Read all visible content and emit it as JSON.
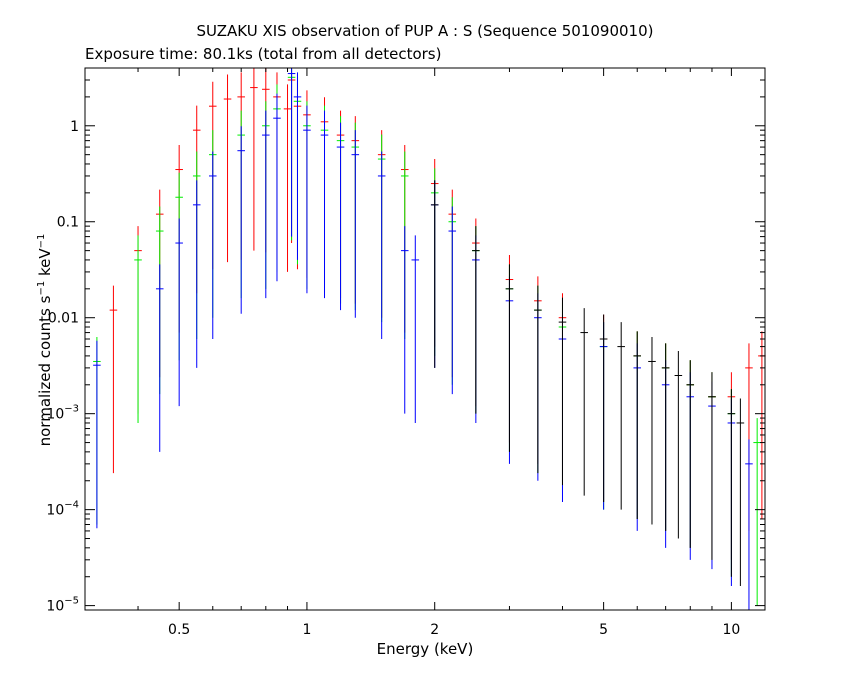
{
  "chart_data": {
    "type": "scatter",
    "title": "SUZAKU XIS observation of PUP A : S (Sequence 501090010)",
    "subtitle": "Exposure time: 80.1ks (total from all detectors)",
    "xlabel": "Energy (keV)",
    "ylabel_main": "normalized counts s",
    "ylabel_sup1": "−1",
    "ylabel_mid": " keV",
    "ylabel_sup2": "−1",
    "x_scale": "log",
    "y_scale": "log",
    "xlim": [
      0.3,
      12.0
    ],
    "ylim": [
      9e-06,
      4.0
    ],
    "x_ticks": [
      {
        "value": 0.5,
        "label": "0.5"
      },
      {
        "value": 1,
        "label": "1"
      },
      {
        "value": 2,
        "label": "2"
      },
      {
        "value": 5,
        "label": "5"
      },
      {
        "value": 10,
        "label": "10"
      }
    ],
    "y_ticks": [
      {
        "value": 1e-05,
        "mant": "10",
        "exp": "−5"
      },
      {
        "value": 0.0001,
        "mant": "10",
        "exp": "−4"
      },
      {
        "value": 0.001,
        "mant": "10",
        "exp": "−3"
      },
      {
        "value": 0.01,
        "mant": "0.01",
        "exp": ""
      },
      {
        "value": 0.1,
        "mant": "0.1",
        "exp": ""
      },
      {
        "value": 1,
        "mant": "1",
        "exp": ""
      }
    ],
    "series": [
      {
        "color": "#ff0000",
        "points": [
          [
            0.35,
            0.012
          ],
          [
            0.4,
            0.05
          ],
          [
            0.45,
            0.12
          ],
          [
            0.5,
            0.35
          ],
          [
            0.55,
            0.9
          ],
          [
            0.6,
            1.6
          ],
          [
            0.65,
            1.9
          ],
          [
            0.7,
            2.0
          ],
          [
            0.75,
            2.5
          ],
          [
            0.8,
            2.4
          ],
          [
            0.85,
            2.0
          ],
          [
            0.9,
            1.5
          ],
          [
            0.92,
            3.0
          ],
          [
            0.95,
            1.6
          ],
          [
            1.0,
            1.3
          ],
          [
            1.1,
            1.1
          ],
          [
            1.2,
            0.8
          ],
          [
            1.3,
            0.7
          ],
          [
            1.5,
            0.5
          ],
          [
            1.7,
            0.35
          ],
          [
            2.0,
            0.25
          ],
          [
            2.2,
            0.12
          ],
          [
            2.5,
            0.06
          ],
          [
            3.0,
            0.025
          ],
          [
            3.5,
            0.015
          ],
          [
            4.0,
            0.01
          ],
          [
            5.0,
            0.006
          ],
          [
            6.0,
            0.004
          ],
          [
            7.0,
            0.003
          ],
          [
            8.0,
            0.002
          ],
          [
            9.0,
            0.0015
          ],
          [
            10.0,
            0.0015
          ],
          [
            11.0,
            0.003
          ],
          [
            11.8,
            0.004
          ]
        ]
      },
      {
        "color": "#00ee00",
        "points": [
          [
            0.32,
            0.0035
          ],
          [
            0.4,
            0.04
          ],
          [
            0.45,
            0.08
          ],
          [
            0.5,
            0.18
          ],
          [
            0.55,
            0.3
          ],
          [
            0.6,
            0.5
          ],
          [
            0.7,
            0.8
          ],
          [
            0.8,
            1.0
          ],
          [
            0.85,
            1.5
          ],
          [
            0.92,
            3.2
          ],
          [
            0.95,
            1.8
          ],
          [
            1.0,
            1.0
          ],
          [
            1.1,
            0.9
          ],
          [
            1.2,
            0.7
          ],
          [
            1.3,
            0.6
          ],
          [
            1.5,
            0.45
          ],
          [
            1.7,
            0.3
          ],
          [
            2.0,
            0.2
          ],
          [
            2.2,
            0.1
          ],
          [
            2.5,
            0.05
          ],
          [
            3.0,
            0.02
          ],
          [
            3.5,
            0.012
          ],
          [
            4.0,
            0.008
          ],
          [
            5.0,
            0.005
          ],
          [
            6.0,
            0.004
          ],
          [
            7.0,
            0.003
          ],
          [
            8.0,
            0.002
          ],
          [
            9.0,
            0.0015
          ],
          [
            10.0,
            0.001
          ],
          [
            11.5,
            0.0005
          ]
        ]
      },
      {
        "color": "#0000ff",
        "points": [
          [
            0.32,
            0.0032
          ],
          [
            0.45,
            0.02
          ],
          [
            0.5,
            0.06
          ],
          [
            0.55,
            0.15
          ],
          [
            0.6,
            0.3
          ],
          [
            0.7,
            0.55
          ],
          [
            0.8,
            0.8
          ],
          [
            0.85,
            1.2
          ],
          [
            0.92,
            3.5
          ],
          [
            0.95,
            2.0
          ],
          [
            1.0,
            0.9
          ],
          [
            1.1,
            0.8
          ],
          [
            1.2,
            0.6
          ],
          [
            1.3,
            0.5
          ],
          [
            1.5,
            0.3
          ],
          [
            1.7,
            0.05
          ],
          [
            1.8,
            0.04
          ],
          [
            2.0,
            0.15
          ],
          [
            2.2,
            0.08
          ],
          [
            2.5,
            0.04
          ],
          [
            3.0,
            0.015
          ],
          [
            3.5,
            0.01
          ],
          [
            4.0,
            0.006
          ],
          [
            5.0,
            0.005
          ],
          [
            6.0,
            0.003
          ],
          [
            7.0,
            0.002
          ],
          [
            8.0,
            0.0015
          ],
          [
            9.0,
            0.0012
          ],
          [
            10.0,
            0.0008
          ],
          [
            11.0,
            0.0003
          ]
        ]
      },
      {
        "color": "#000000",
        "points": [
          [
            2.0,
            0.15
          ],
          [
            2.5,
            0.05
          ],
          [
            3.0,
            0.02
          ],
          [
            3.5,
            0.012
          ],
          [
            4.0,
            0.009
          ],
          [
            4.5,
            0.007
          ],
          [
            5.0,
            0.006
          ],
          [
            5.5,
            0.005
          ],
          [
            6.0,
            0.004
          ],
          [
            6.5,
            0.0035
          ],
          [
            7.0,
            0.003
          ],
          [
            7.5,
            0.0025
          ],
          [
            8.0,
            0.002
          ],
          [
            9.0,
            0.0015
          ],
          [
            10.0,
            0.001
          ],
          [
            10.5,
            0.0008
          ]
        ]
      }
    ]
  }
}
